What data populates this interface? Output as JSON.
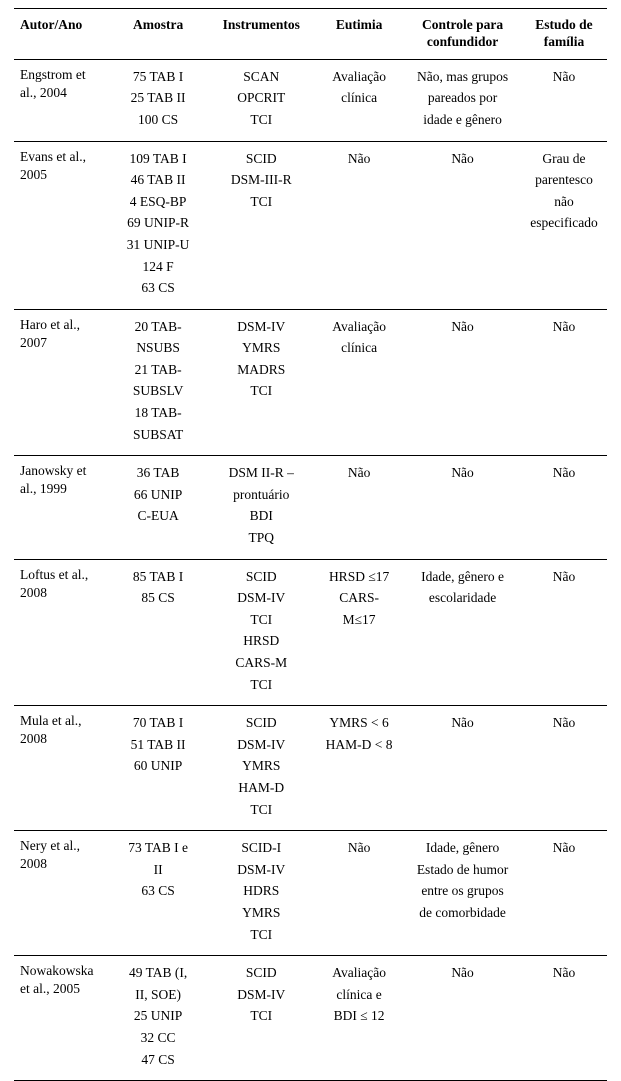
{
  "columns": {
    "c1": "Autor/Ano",
    "c2": "Amostra",
    "c3": "Instrumentos",
    "c4": "Eutimia",
    "c5_l1": "Controle para",
    "c5_l2": "confundidor",
    "c6_l1": "Estudo de",
    "c6_l2": "família"
  },
  "rows": [
    {
      "author": "Engstrom et al., 2004",
      "amostra": [
        "75 TAB I",
        "25 TAB II",
        "100 CS"
      ],
      "instrumentos": [
        "SCAN",
        "OPCRIT",
        "TCI"
      ],
      "eutimia": [
        "Avaliação",
        "clínica"
      ],
      "controle": [
        "Não, mas grupos",
        "pareados por",
        "idade e gênero"
      ],
      "estudo": [
        "Não"
      ]
    },
    {
      "author": "Evans et al., 2005",
      "amostra": [
        "109 TAB I",
        "46 TAB II",
        "4 ESQ-BP",
        "69 UNIP-R",
        "31 UNIP-U",
        "124 F",
        "63 CS"
      ],
      "instrumentos": [
        "SCID",
        "DSM-III-R",
        "TCI"
      ],
      "eutimia": [
        "Não"
      ],
      "controle": [
        "Não"
      ],
      "estudo": [
        "Grau de",
        "parentesco",
        "não",
        "especificado"
      ]
    },
    {
      "author": "Haro et al., 2007",
      "amostra": [
        "20 TAB-",
        "NSUBS",
        "21 TAB-",
        "SUBSLV",
        "18 TAB-",
        "SUBSAT"
      ],
      "instrumentos": [
        "DSM-IV",
        "YMRS",
        "MADRS",
        "TCI"
      ],
      "eutimia": [
        "Avaliação",
        "clínica"
      ],
      "controle": [
        "Não"
      ],
      "estudo": [
        "Não"
      ]
    },
    {
      "author": "Janowsky et al., 1999",
      "amostra": [
        "36 TAB",
        "66 UNIP",
        "C-EUA"
      ],
      "instrumentos": [
        "DSM II-R –",
        "prontuário",
        "BDI",
        "TPQ"
      ],
      "eutimia": [
        "Não"
      ],
      "controle": [
        "Não"
      ],
      "estudo": [
        "Não"
      ]
    },
    {
      "author": "Loftus et al., 2008",
      "amostra": [
        "85 TAB I",
        "85 CS"
      ],
      "instrumentos": [
        "SCID",
        "DSM-IV",
        "TCI",
        "HRSD",
        "CARS-M",
        "TCI"
      ],
      "eutimia": [
        "HRSD ≤17",
        "CARS-",
        "M≤17"
      ],
      "controle": [
        "Idade, gênero e",
        "escolaridade"
      ],
      "estudo": [
        "Não"
      ]
    },
    {
      "author": "Mula et al., 2008",
      "amostra": [
        "70 TAB I",
        "51 TAB  II",
        "60 UNIP"
      ],
      "instrumentos": [
        "SCID",
        "DSM-IV",
        "YMRS",
        "HAM-D",
        "TCI"
      ],
      "eutimia": [
        "YMRS < 6",
        "HAM-D < 8"
      ],
      "controle": [
        "Não"
      ],
      "estudo": [
        "Não"
      ]
    },
    {
      "author": "Nery et al., 2008",
      "amostra": [
        "73 TAB I e",
        "II",
        "63 CS"
      ],
      "instrumentos": [
        "SCID-I",
        "DSM-IV",
        "HDRS",
        "YMRS",
        "TCI"
      ],
      "eutimia": [
        "Não"
      ],
      "controle": [
        "Idade, gênero",
        "Estado de humor",
        "entre os grupos",
        "de comorbidade"
      ],
      "estudo": [
        "Não"
      ]
    },
    {
      "author": "Nowakowska et al., 2005",
      "amostra": [
        "49 TAB (I,",
        "II, SOE)",
        "25 UNIP",
        "32 CC",
        "47 CS"
      ],
      "instrumentos": [
        "SCID",
        "DSM-IV",
        "TCI"
      ],
      "eutimia": [
        "Avaliação",
        "clínica e",
        "BDI ≤ 12"
      ],
      "controle": [
        "Não"
      ],
      "estudo": [
        "Não"
      ]
    }
  ]
}
